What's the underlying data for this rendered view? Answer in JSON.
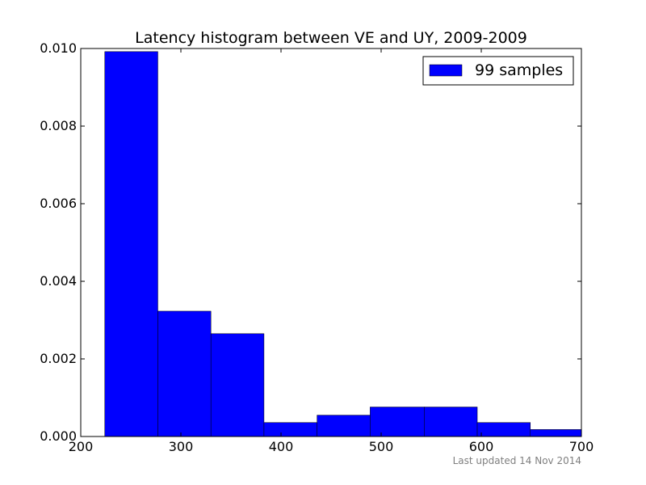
{
  "chart_data": {
    "type": "bar",
    "subtype": "histogram",
    "title": "Latency histogram between VE and UY, 2009-2009",
    "xlabel": "",
    "ylabel": "",
    "xlim": [
      200,
      700
    ],
    "ylim": [
      0,
      0.01
    ],
    "x_ticks": [
      200,
      300,
      400,
      500,
      600,
      700
    ],
    "x_tick_labels": [
      "200",
      "300",
      "400",
      "500",
      "600",
      "700"
    ],
    "y_ticks": [
      0.0,
      0.002,
      0.004,
      0.006,
      0.008,
      0.01
    ],
    "y_tick_labels": [
      "0.000",
      "0.002",
      "0.004",
      "0.006",
      "0.008",
      "0.010"
    ],
    "grid": false,
    "legend_position": "top-right",
    "bins": [
      {
        "x0": 224,
        "x1": 277,
        "value": 0.00992
      },
      {
        "x0": 277,
        "x1": 330,
        "value": 0.00323
      },
      {
        "x0": 330,
        "x1": 383,
        "value": 0.00265
      },
      {
        "x0": 383,
        "x1": 436,
        "value": 0.00036
      },
      {
        "x0": 436,
        "x1": 489,
        "value": 0.00055
      },
      {
        "x0": 489,
        "x1": 543,
        "value": 0.00076
      },
      {
        "x0": 543,
        "x1": 596,
        "value": 0.00076
      },
      {
        "x0": 596,
        "x1": 649,
        "value": 0.00036
      },
      {
        "x0": 649,
        "x1": 702,
        "value": 0.00018
      }
    ],
    "series": [
      {
        "name": "99 samples",
        "color": "#0000ff"
      }
    ]
  },
  "footer": {
    "updated_text": "Last updated 14 Nov 2014"
  }
}
